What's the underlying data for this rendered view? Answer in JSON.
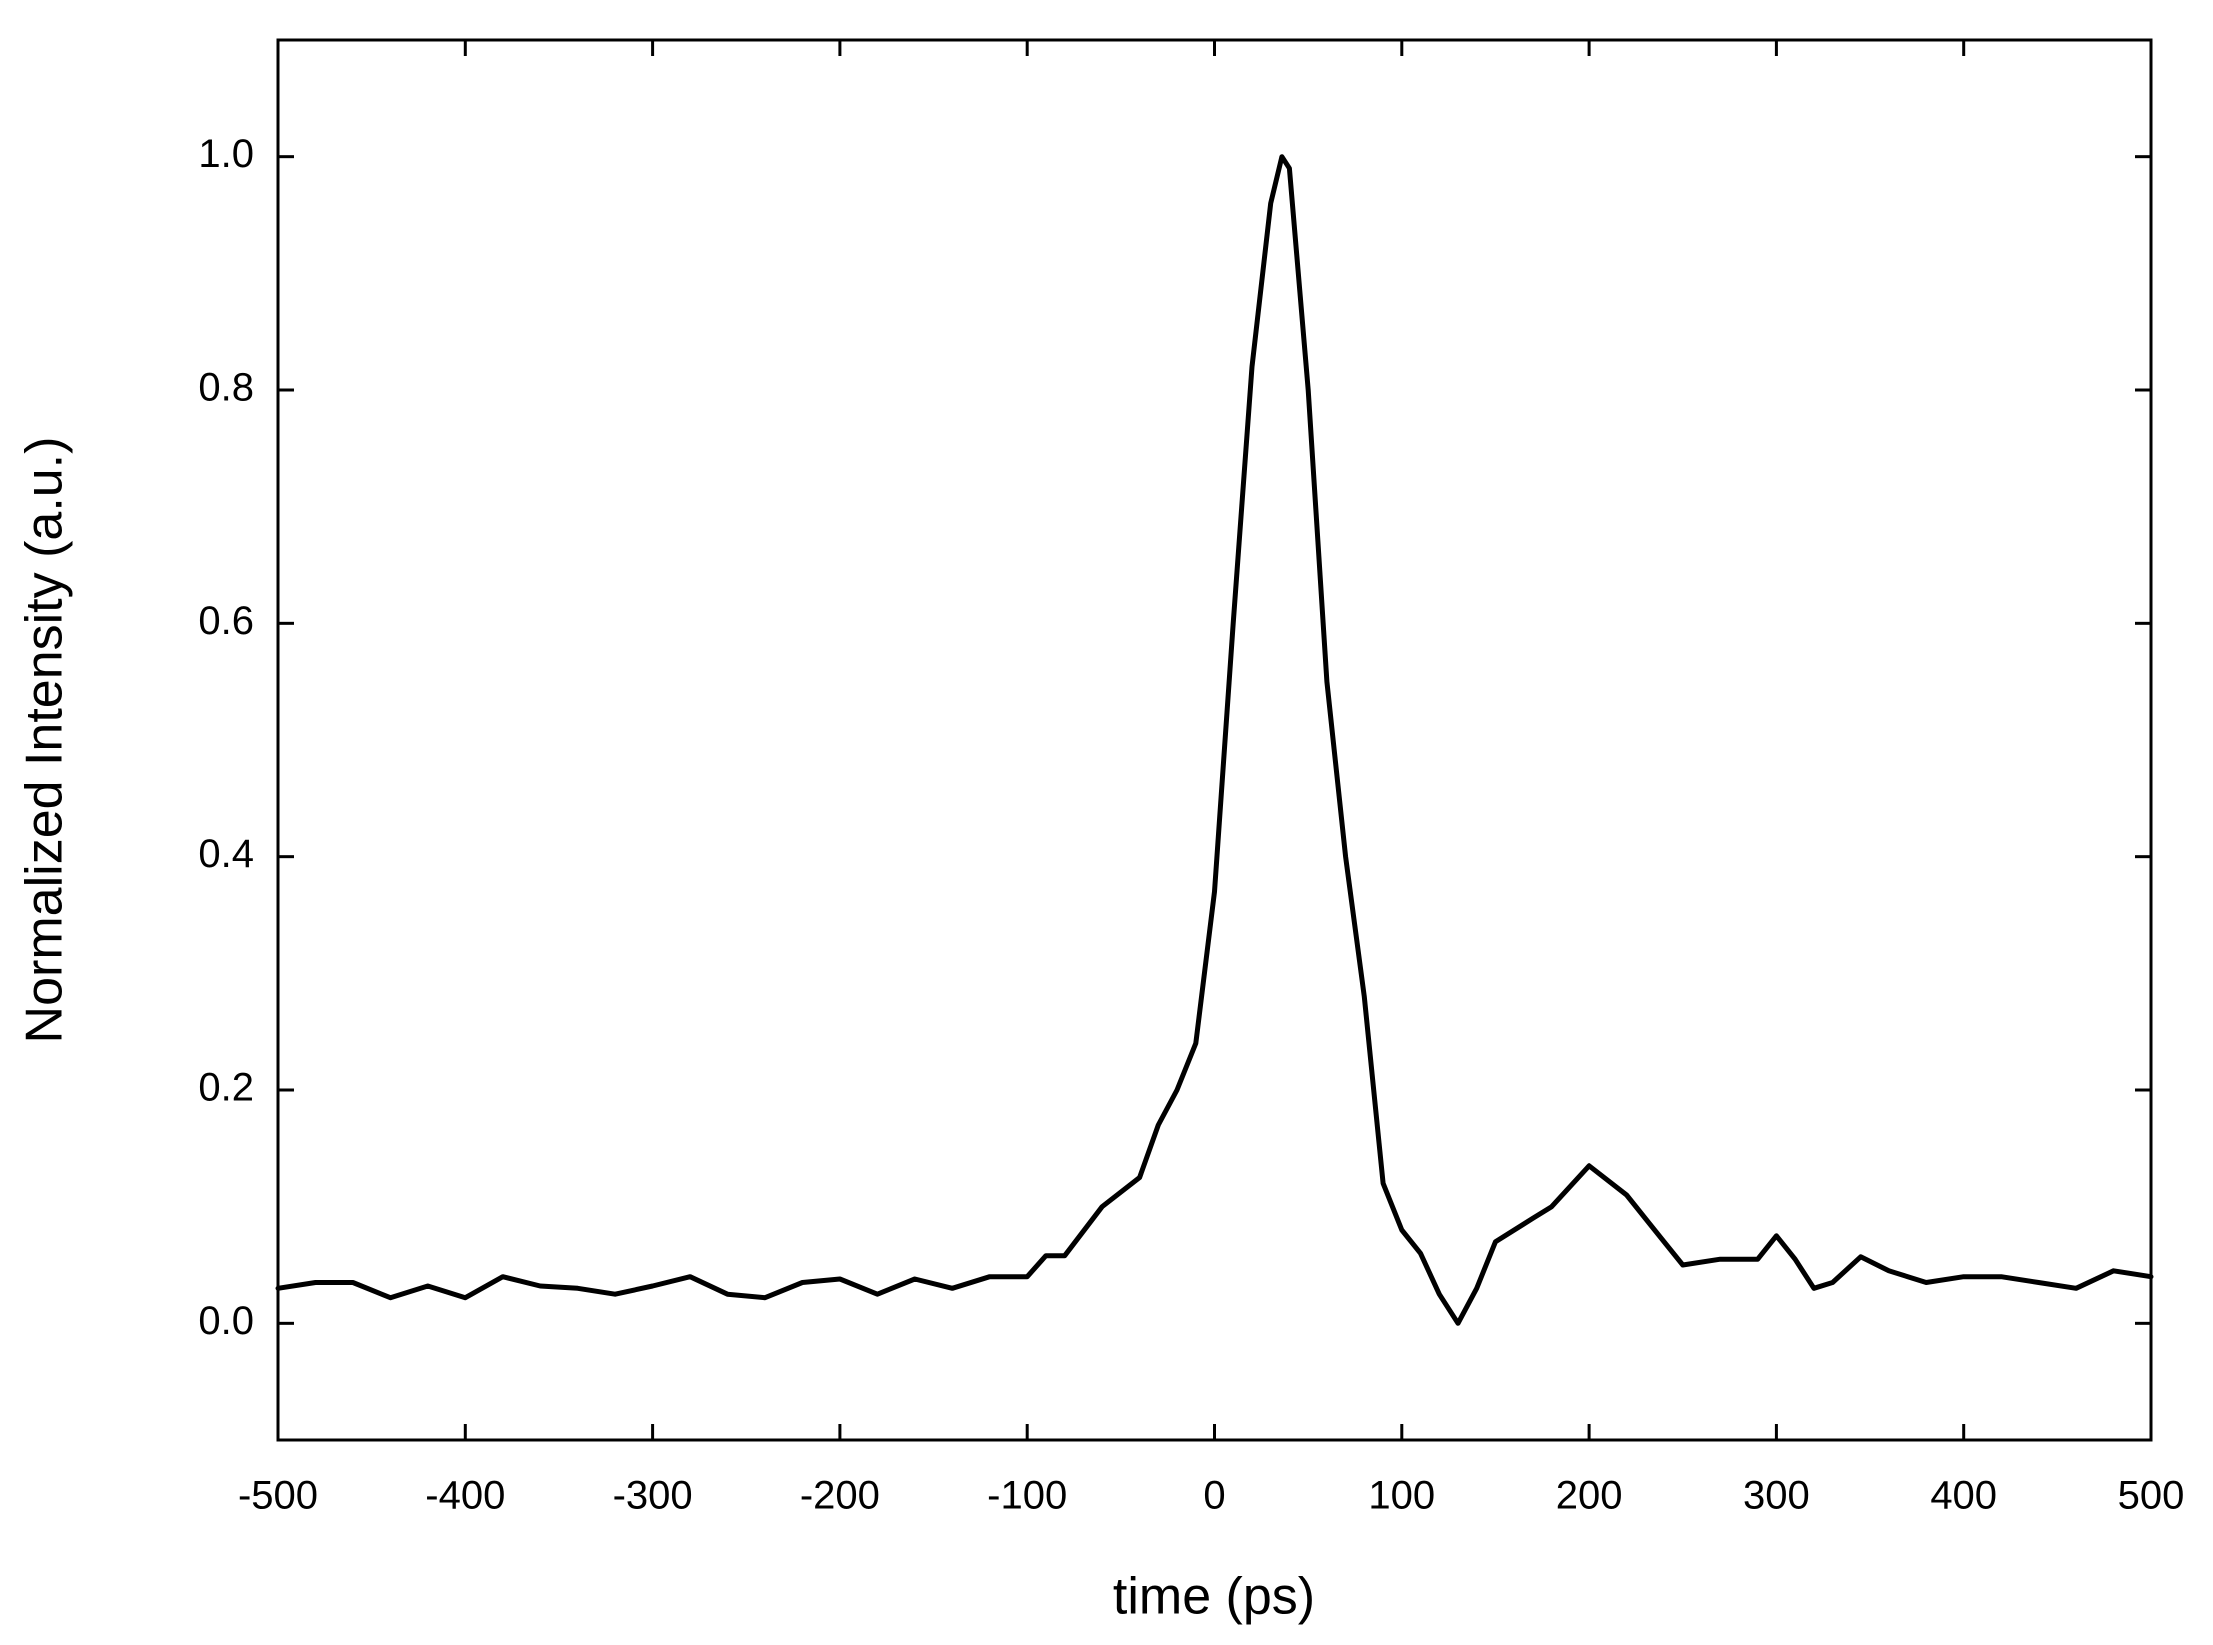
{
  "chart_data": {
    "type": "line",
    "x_label": "time (ps)",
    "y_label": "Normalized Intensity (a.u.)",
    "xlim": [
      -500,
      500
    ],
    "ylim": [
      -0.1,
      1.1
    ],
    "xticks": [
      -500,
      -400,
      -300,
      -200,
      -100,
      0,
      100,
      200,
      300,
      400,
      500
    ],
    "yticks": [
      {
        "value": 0,
        "label": "0.0"
      },
      0.2,
      0.4,
      0.6,
      0.8,
      {
        "value": 1,
        "label": "1.0"
      }
    ],
    "grid": false,
    "series": [
      {
        "color": "#000000",
        "x": [
          -500,
          -480,
          -460,
          -440,
          -420,
          -400,
          -380,
          -360,
          -340,
          -320,
          -300,
          -280,
          -260,
          -240,
          -220,
          -200,
          -180,
          -160,
          -140,
          -120,
          -100,
          -90,
          -80,
          -60,
          -40,
          -30,
          -20,
          -10,
          0,
          10,
          20,
          30,
          36,
          40,
          50,
          60,
          70,
          80,
          90,
          100,
          110,
          120,
          130,
          140,
          150,
          170,
          180,
          200,
          220,
          240,
          250,
          270,
          290,
          300,
          310,
          320,
          330,
          345,
          360,
          380,
          400,
          420,
          440,
          460,
          480,
          500
        ],
        "values": [
          0.03,
          0.035,
          0.035,
          0.022,
          0.032,
          0.022,
          0.04,
          0.032,
          0.03,
          0.025,
          0.032,
          0.04,
          0.025,
          0.022,
          0.035,
          0.038,
          0.025,
          0.038,
          0.03,
          0.04,
          0.04,
          0.058,
          0.058,
          0.1,
          0.125,
          0.17,
          0.2,
          0.24,
          0.37,
          0.6,
          0.82,
          0.96,
          1.0,
          0.99,
          0.8,
          0.55,
          0.4,
          0.28,
          0.12,
          0.08,
          0.06,
          0.025,
          0.0,
          0.03,
          0.07,
          0.09,
          0.1,
          0.135,
          0.11,
          0.07,
          0.05,
          0.055,
          0.055,
          0.075,
          0.055,
          0.03,
          0.035,
          0.057,
          0.045,
          0.035,
          0.04,
          0.04,
          0.035,
          0.03,
          0.045,
          0.04
        ]
      }
    ]
  }
}
